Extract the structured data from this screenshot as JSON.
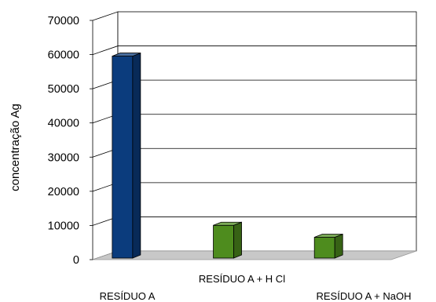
{
  "chart_data": {
    "type": "bar",
    "style": "3d-column",
    "categories": [
      "RESÍDUO A",
      "RESÍDUO A + H Cl",
      "RESÍDUO A + NaOH"
    ],
    "values": [
      60000,
      10500,
      7000
    ],
    "colors": [
      "#0b3c7d",
      "#4e8c1e",
      "#4e8c1e"
    ],
    "ylabel": "concentração Ag",
    "ylim": [
      0,
      70000
    ],
    "yticks": [
      0,
      10000,
      20000,
      30000,
      40000,
      50000,
      60000,
      70000
    ],
    "grid": true,
    "legend": "none"
  }
}
